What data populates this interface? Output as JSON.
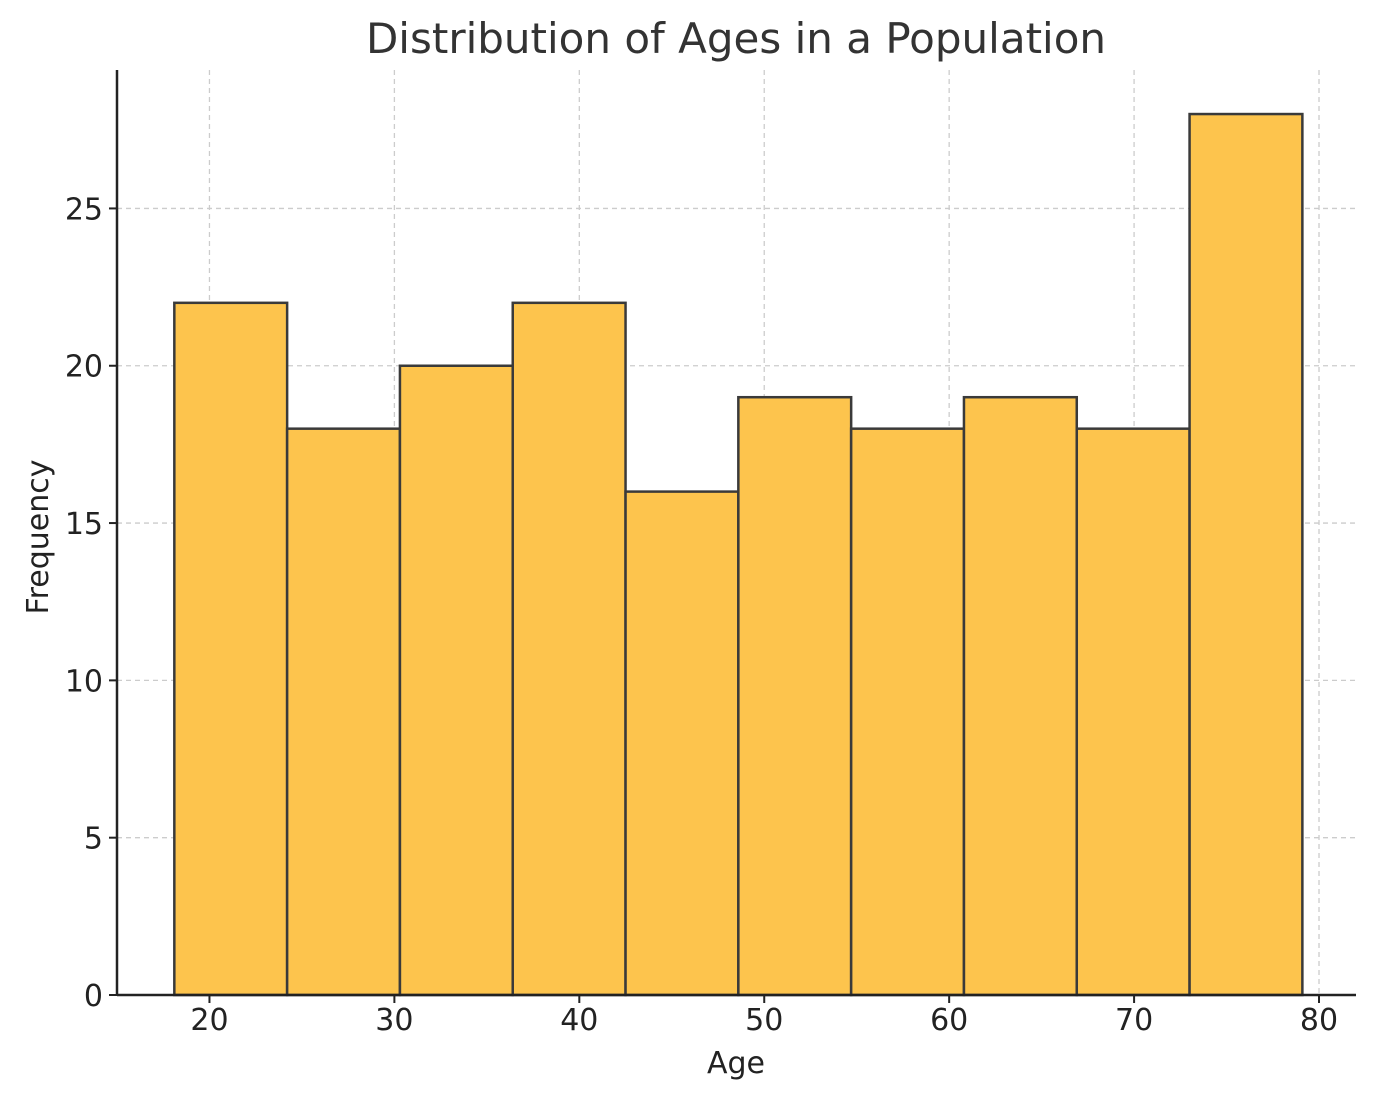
{
  "chart_data": {
    "type": "bar",
    "title": "Distribution of Ages in a Population",
    "xlabel": "Age",
    "ylabel": "Frequency",
    "bin_edges": [
      18.1,
      24.2,
      30.3,
      36.4,
      42.5,
      48.6,
      54.7,
      60.8,
      66.9,
      73.0,
      79.1
    ],
    "values": [
      22,
      18,
      20,
      22,
      16,
      19,
      18,
      19,
      18,
      28
    ],
    "xlim": [
      15,
      82
    ],
    "ylim": [
      0,
      29.4
    ],
    "xticks": [
      20,
      30,
      40,
      50,
      60,
      70,
      80
    ],
    "yticks": [
      0,
      5,
      10,
      15,
      20,
      25
    ],
    "grid": true,
    "bar_color": "#fdc44d",
    "edge_color": "#3a3a3a"
  }
}
